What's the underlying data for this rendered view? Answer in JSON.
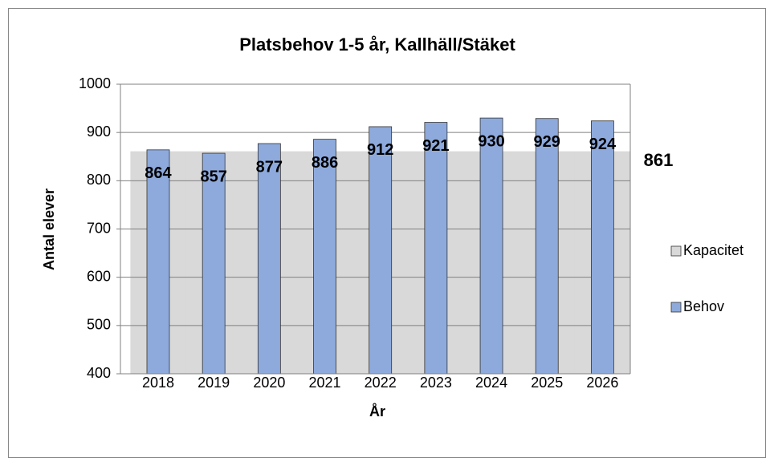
{
  "chart_data": {
    "type": "bar",
    "title": "Platsbehov 1-5 år, Kallhäll/Stäket",
    "x_label": "År",
    "y_label": "Antal elever",
    "categories": [
      "2018",
      "2019",
      "2020",
      "2021",
      "2022",
      "2023",
      "2024",
      "2025",
      "2026"
    ],
    "series": [
      {
        "name": "Kapacitet",
        "type": "area",
        "color": "#d9d9d9",
        "values": [
          861,
          861,
          861,
          861,
          861,
          861,
          861,
          861,
          861
        ]
      },
      {
        "name": "Behov",
        "type": "bar",
        "color": "#8eaadc",
        "values": [
          864,
          857,
          877,
          886,
          912,
          921,
          930,
          929,
          924
        ]
      }
    ],
    "ylim": [
      400,
      1000
    ],
    "yticks": [
      400,
      500,
      600,
      700,
      800,
      900,
      1000
    ],
    "grid": true,
    "legend": "right"
  }
}
